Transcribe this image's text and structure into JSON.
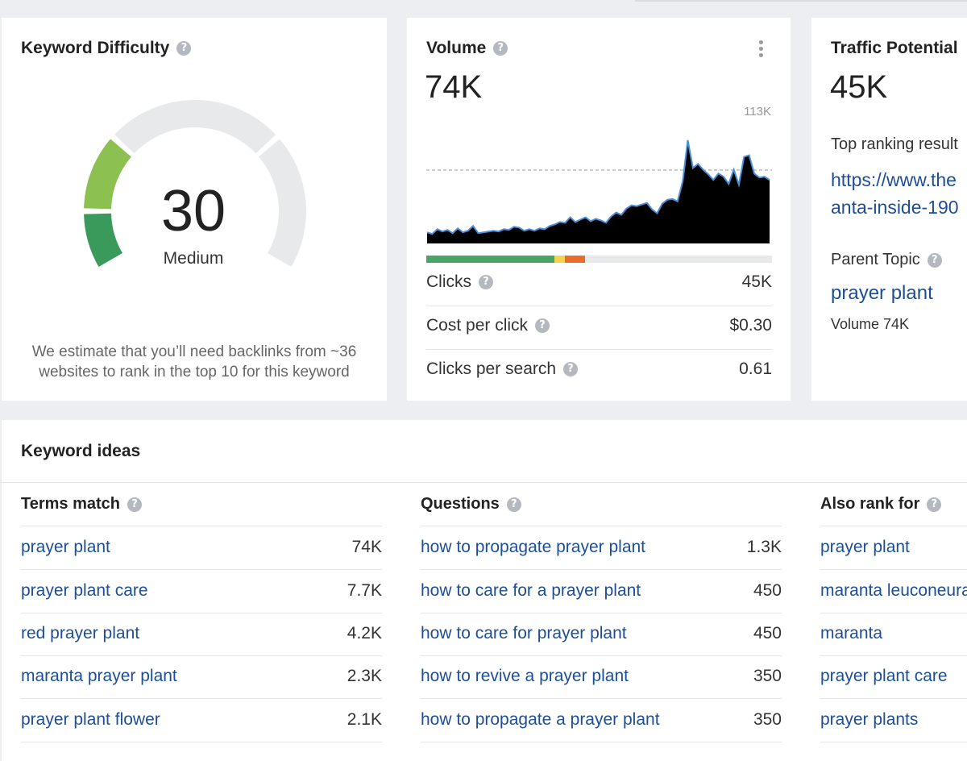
{
  "keyword_difficulty": {
    "title": "Keyword Difficulty",
    "score": "30",
    "rating": "Medium",
    "score_fraction": 0.3,
    "description_line1": "We estimate that you’ll need backlinks from ~36",
    "description_line2": "websites to rank in the top 10 for this keyword"
  },
  "volume": {
    "title": "Volume",
    "value": "74K",
    "chart_max_label": "113K",
    "clicks_bar": {
      "organic": 0.37,
      "paid": 0.03,
      "other": 0.06
    },
    "metrics": [
      {
        "label": "Clicks",
        "value": "45K"
      },
      {
        "label": "Cost per click",
        "value": "$0.30"
      },
      {
        "label": "Clicks per search",
        "value": "0.61"
      }
    ],
    "series": [
      14,
      12,
      18,
      15,
      17,
      13,
      19,
      14,
      16,
      22,
      13,
      14,
      15,
      16,
      15,
      18,
      17,
      21,
      20,
      16,
      18,
      16,
      19,
      18,
      22,
      24,
      27,
      26,
      33,
      27,
      30,
      33,
      28,
      31,
      29,
      26,
      34,
      39,
      36,
      44,
      48,
      47,
      49,
      51,
      43,
      38,
      50,
      55,
      56,
      53,
      78,
      130,
      95,
      100,
      93,
      87,
      80,
      88,
      84,
      75,
      93,
      74,
      109,
      111,
      88,
      83,
      84,
      80
    ]
  },
  "traffic_potential": {
    "title": "Traffic Potential",
    "value": "45K",
    "top_ranking_label": "Top ranking result",
    "url_line1": "https://www.the",
    "url_line2": "anta-inside-190",
    "parent_topic_label": "Parent Topic",
    "parent_topic": "prayer plant",
    "parent_volume": "Volume 74K"
  },
  "keyword_ideas": {
    "title": "Keyword ideas",
    "columns": [
      {
        "title": "Terms match",
        "rows": [
          {
            "keyword": "prayer plant",
            "volume": "74K"
          },
          {
            "keyword": "prayer plant care",
            "volume": "7.7K"
          },
          {
            "keyword": "red prayer plant",
            "volume": "4.2K"
          },
          {
            "keyword": "maranta prayer plant",
            "volume": "2.3K"
          },
          {
            "keyword": "prayer plant flower",
            "volume": "2.1K"
          }
        ]
      },
      {
        "title": "Questions",
        "rows": [
          {
            "keyword": "how to propagate prayer plant",
            "volume": "1.3K"
          },
          {
            "keyword": "how to care for a prayer plant",
            "volume": "450"
          },
          {
            "keyword": "how to care for prayer plant",
            "volume": "450"
          },
          {
            "keyword": "how to revive a prayer plant",
            "volume": "350"
          },
          {
            "keyword": "how to propagate a prayer plant",
            "volume": "350"
          }
        ]
      },
      {
        "title": "Also rank for",
        "rows": [
          {
            "keyword": "prayer plant"
          },
          {
            "keyword": "maranta leuconeura"
          },
          {
            "keyword": "maranta"
          },
          {
            "keyword": "prayer plant care"
          },
          {
            "keyword": "prayer plants"
          }
        ]
      }
    ]
  },
  "colors": {
    "link": "#1d4e97",
    "chart_line": "#4a90d9",
    "gauge_green_light": "#8cc152",
    "gauge_green_dark": "#3a9a5b",
    "bar_green": "#4aa564",
    "bar_yellow": "#f2d54c",
    "bar_orange": "#ea6c2a"
  }
}
